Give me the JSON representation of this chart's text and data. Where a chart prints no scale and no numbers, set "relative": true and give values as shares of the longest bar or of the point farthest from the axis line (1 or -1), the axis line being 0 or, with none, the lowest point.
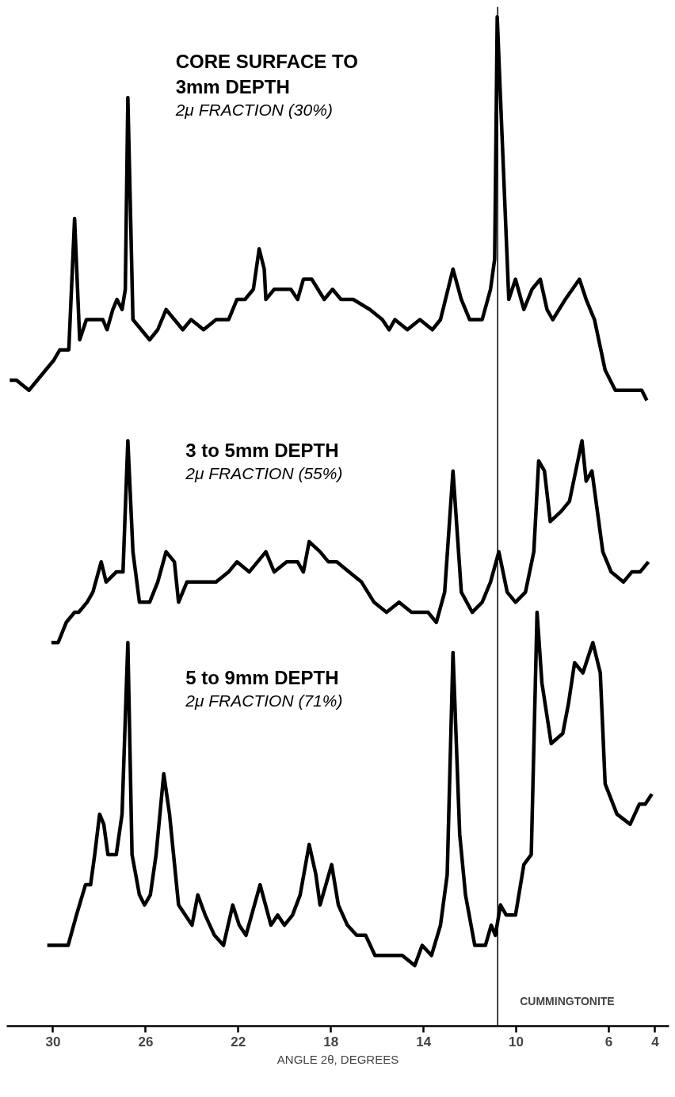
{
  "chart_data": {
    "type": "line",
    "relative": true,
    "xlabel": "ANGLE 2θ, DEGREES",
    "xlim": [
      32,
      3.4
    ],
    "xticks": [
      30,
      26,
      22,
      18,
      14,
      10,
      6,
      4
    ],
    "grid": false,
    "marker": "none",
    "line_style": "solid",
    "annotations": [
      "2μ FRACTION (30%)",
      "2μ FRACTION (55%)",
      "2μ FRACTION (71%)"
    ],
    "ref_lines": [
      {
        "axis": "x",
        "value": 10.8,
        "label": "CUMMINGTONITE",
        "color": "#000000"
      }
    ],
    "series": [
      {
        "name": "CORE SURFACE TO\n3mm DEPTH",
        "color": "#000000",
        "x": [
          31.87,
          31.58,
          31.04,
          30.68,
          30.32,
          29.96,
          29.71,
          29.32,
          29.07,
          28.85,
          28.56,
          28.2,
          27.85,
          27.67,
          27.42,
          27.24,
          27.02,
          26.88,
          26.77,
          26.55,
          26.19,
          25.83,
          25.48,
          25.12,
          24.76,
          24.4,
          24.04,
          23.5,
          22.96,
          22.42,
          22.06,
          21.71,
          21.35,
          21.1,
          20.88,
          20.81,
          20.45,
          20.09,
          19.73,
          19.44,
          19.19,
          18.83,
          18.29,
          17.93,
          17.57,
          17.04,
          16.32,
          15.78,
          15.49,
          15.24,
          14.7,
          14.16,
          13.62,
          13.27,
          12.73,
          12.37,
          12.01,
          11.47,
          11.11,
          10.93,
          10.82,
          10.68,
          10.32,
          10.03,
          9.67,
          9.32,
          8.96,
          8.67,
          8.42,
          7.88,
          7.27,
          6.98,
          6.62,
          6.16,
          5.72,
          5.19,
          4.83,
          4.58,
          4.36
        ],
        "values": [
          0.64,
          0.64,
          0.63,
          0.64,
          0.65,
          0.66,
          0.67,
          0.67,
          0.8,
          0.68,
          0.7,
          0.7,
          0.7,
          0.69,
          0.71,
          0.72,
          0.71,
          0.73,
          0.92,
          0.7,
          0.69,
          0.68,
          0.69,
          0.71,
          0.7,
          0.69,
          0.7,
          0.69,
          0.7,
          0.7,
          0.72,
          0.72,
          0.73,
          0.77,
          0.75,
          0.72,
          0.73,
          0.73,
          0.73,
          0.72,
          0.74,
          0.74,
          0.72,
          0.73,
          0.72,
          0.72,
          0.71,
          0.7,
          0.69,
          0.7,
          0.69,
          0.7,
          0.69,
          0.7,
          0.75,
          0.72,
          0.7,
          0.7,
          0.73,
          0.76,
          1.0,
          0.92,
          0.72,
          0.74,
          0.71,
          0.73,
          0.74,
          0.71,
          0.7,
          0.72,
          0.74,
          0.72,
          0.7,
          0.65,
          0.63,
          0.63,
          0.63,
          0.63,
          0.62
        ]
      },
      {
        "name": "3 to 5mm DEPTH",
        "color": "#000000",
        "x": [
          30.07,
          29.78,
          29.43,
          29.07,
          28.89,
          28.53,
          28.28,
          27.92,
          27.71,
          27.27,
          26.98,
          26.77,
          26.55,
          26.27,
          25.83,
          25.48,
          25.12,
          24.76,
          24.58,
          24.22,
          23.68,
          23.32,
          22.96,
          22.42,
          22.06,
          21.53,
          21.17,
          20.81,
          20.45,
          19.91,
          19.44,
          19.19,
          18.94,
          18.47,
          18.11,
          17.75,
          17.22,
          16.68,
          16.14,
          15.6,
          15.06,
          14.52,
          14.16,
          13.81,
          13.45,
          13.09,
          12.73,
          12.37,
          11.9,
          11.47,
          11.11,
          10.75,
          10.39,
          10.03,
          9.6,
          9.24,
          9.03,
          8.78,
          8.53,
          8.06,
          7.7,
          7.34,
          7.16,
          6.98,
          6.73,
          6.26,
          5.9,
          5.37,
          5.01,
          4.65,
          4.29
        ],
        "values": [
          0.38,
          0.38,
          0.4,
          0.41,
          0.41,
          0.42,
          0.43,
          0.46,
          0.44,
          0.45,
          0.45,
          0.58,
          0.47,
          0.42,
          0.42,
          0.44,
          0.47,
          0.46,
          0.42,
          0.44,
          0.44,
          0.44,
          0.44,
          0.45,
          0.46,
          0.45,
          0.46,
          0.47,
          0.45,
          0.46,
          0.46,
          0.45,
          0.48,
          0.47,
          0.46,
          0.46,
          0.45,
          0.44,
          0.42,
          0.41,
          0.42,
          0.41,
          0.41,
          0.41,
          0.4,
          0.43,
          0.55,
          0.43,
          0.41,
          0.42,
          0.44,
          0.47,
          0.43,
          0.42,
          0.43,
          0.47,
          0.56,
          0.55,
          0.5,
          0.51,
          0.52,
          0.56,
          0.58,
          0.54,
          0.55,
          0.47,
          0.45,
          0.44,
          0.45,
          0.45,
          0.46
        ]
      },
      {
        "name": "5 to 9mm DEPTH",
        "color": "#000000",
        "x": [
          30.25,
          29.86,
          29.57,
          29.35,
          28.99,
          28.6,
          28.38,
          28.2,
          27.99,
          27.81,
          27.63,
          27.41,
          27.27,
          27.02,
          26.77,
          26.59,
          26.27,
          26.05,
          25.8,
          25.55,
          25.22,
          24.97,
          24.58,
          24.29,
          24.0,
          23.75,
          23.43,
          23.03,
          22.64,
          22.24,
          21.96,
          21.67,
          21.06,
          20.59,
          20.3,
          20.01,
          19.66,
          19.33,
          18.94,
          18.65,
          18.47,
          17.97,
          17.68,
          17.29,
          16.89,
          16.5,
          16.1,
          15.71,
          15.42,
          14.92,
          14.38,
          14.06,
          13.66,
          13.27,
          12.98,
          12.73,
          12.44,
          12.19,
          11.79,
          11.33,
          11.08,
          10.9,
          10.68,
          10.43,
          10.03,
          9.67,
          9.35,
          9.1,
          8.89,
          8.49,
          7.99,
          7.74,
          7.48,
          7.12,
          6.69,
          6.37,
          6.16,
          5.65,
          5.08,
          4.68,
          4.43,
          4.14
        ],
        "values": [
          0.08,
          0.08,
          0.08,
          0.08,
          0.11,
          0.14,
          0.14,
          0.17,
          0.21,
          0.2,
          0.17,
          0.17,
          0.17,
          0.21,
          0.38,
          0.17,
          0.13,
          0.12,
          0.13,
          0.17,
          0.25,
          0.21,
          0.12,
          0.11,
          0.1,
          0.13,
          0.11,
          0.09,
          0.08,
          0.12,
          0.1,
          0.09,
          0.14,
          0.1,
          0.11,
          0.1,
          0.11,
          0.13,
          0.18,
          0.15,
          0.12,
          0.16,
          0.12,
          0.1,
          0.09,
          0.09,
          0.07,
          0.07,
          0.07,
          0.07,
          0.06,
          0.08,
          0.07,
          0.1,
          0.15,
          0.37,
          0.19,
          0.13,
          0.08,
          0.08,
          0.1,
          0.09,
          0.12,
          0.11,
          0.11,
          0.16,
          0.17,
          0.41,
          0.34,
          0.28,
          0.29,
          0.32,
          0.36,
          0.35,
          0.38,
          0.35,
          0.24,
          0.21,
          0.2,
          0.22,
          0.22,
          0.23
        ]
      }
    ]
  }
}
